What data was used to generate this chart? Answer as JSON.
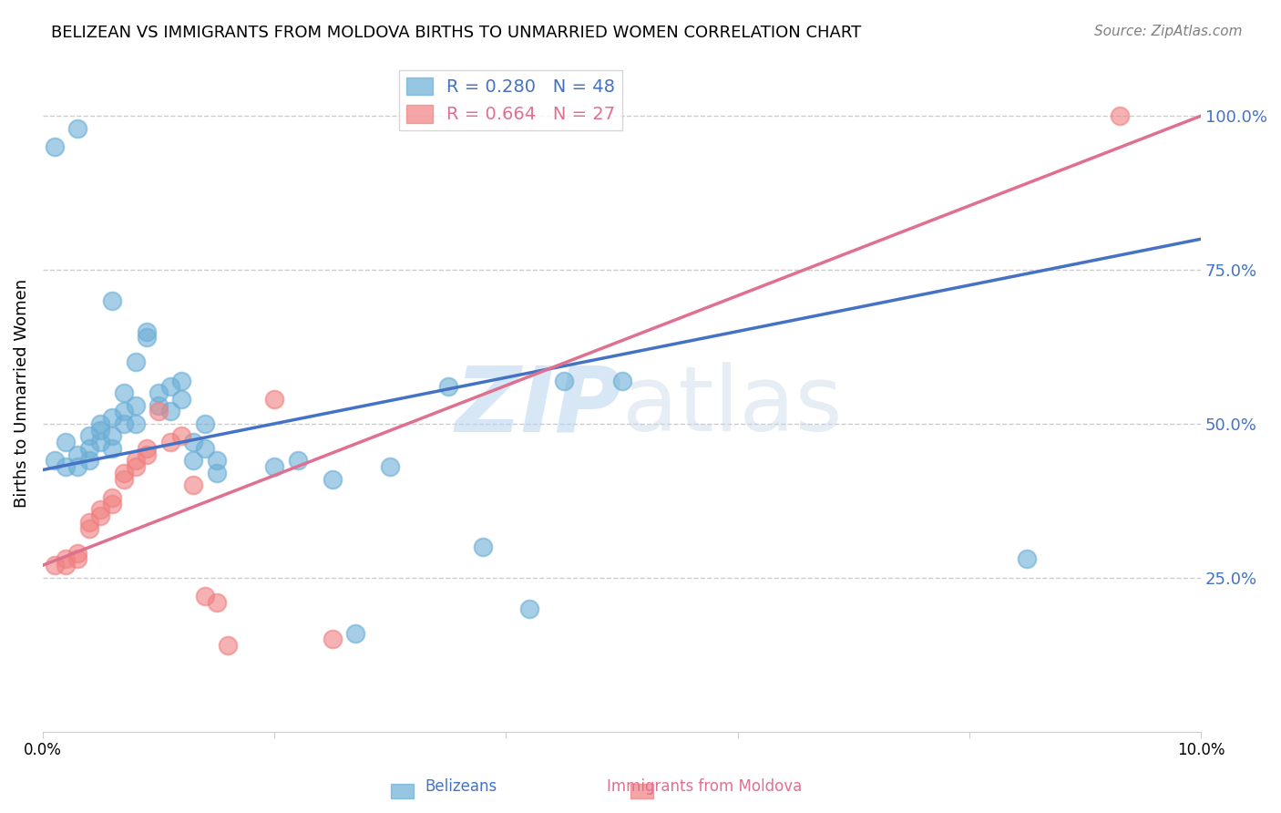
{
  "title": "BELIZEAN VS IMMIGRANTS FROM MOLDOVA BIRTHS TO UNMARRIED WOMEN CORRELATION CHART",
  "source": "Source: ZipAtlas.com",
  "ylabel": "Births to Unmarried Women",
  "yticks": [
    "25.0%",
    "50.0%",
    "75.0%",
    "100.0%"
  ],
  "ytick_vals": [
    0.25,
    0.5,
    0.75,
    1.0
  ],
  "xlim": [
    0.0,
    0.1
  ],
  "ylim": [
    0.0,
    1.1
  ],
  "blue_color": "#6baed6",
  "pink_color": "#f08080",
  "blue_line_color": "#4472c4",
  "pink_line_color": "#e07090",
  "legend_blue_R": "R = 0.280",
  "legend_blue_N": "N = 48",
  "legend_pink_R": "R = 0.664",
  "legend_pink_N": "N = 27",
  "watermark_zip": "ZIP",
  "watermark_atlas": "atlas",
  "blue_scatter_x": [
    0.001,
    0.002,
    0.002,
    0.003,
    0.003,
    0.004,
    0.004,
    0.004,
    0.005,
    0.005,
    0.005,
    0.006,
    0.006,
    0.006,
    0.007,
    0.007,
    0.007,
    0.008,
    0.008,
    0.008,
    0.009,
    0.009,
    0.01,
    0.01,
    0.011,
    0.011,
    0.012,
    0.012,
    0.013,
    0.013,
    0.014,
    0.014,
    0.015,
    0.015,
    0.02,
    0.022,
    0.025,
    0.027,
    0.03,
    0.035,
    0.038,
    0.042,
    0.045,
    0.05,
    0.085,
    0.001,
    0.003,
    0.006
  ],
  "blue_scatter_y": [
    0.44,
    0.43,
    0.47,
    0.43,
    0.45,
    0.44,
    0.48,
    0.46,
    0.49,
    0.47,
    0.5,
    0.51,
    0.48,
    0.46,
    0.52,
    0.5,
    0.55,
    0.5,
    0.53,
    0.6,
    0.65,
    0.64,
    0.53,
    0.55,
    0.52,
    0.56,
    0.54,
    0.57,
    0.47,
    0.44,
    0.5,
    0.46,
    0.42,
    0.44,
    0.43,
    0.44,
    0.41,
    0.16,
    0.43,
    0.56,
    0.3,
    0.2,
    0.57,
    0.57,
    0.28,
    0.95,
    0.98,
    0.7
  ],
  "pink_scatter_x": [
    0.001,
    0.002,
    0.002,
    0.003,
    0.003,
    0.004,
    0.004,
    0.005,
    0.005,
    0.006,
    0.006,
    0.007,
    0.007,
    0.008,
    0.008,
    0.009,
    0.009,
    0.01,
    0.011,
    0.012,
    0.013,
    0.014,
    0.015,
    0.016,
    0.02,
    0.025,
    0.093
  ],
  "pink_scatter_y": [
    0.27,
    0.27,
    0.28,
    0.28,
    0.29,
    0.33,
    0.34,
    0.35,
    0.36,
    0.37,
    0.38,
    0.41,
    0.42,
    0.43,
    0.44,
    0.45,
    0.46,
    0.52,
    0.47,
    0.48,
    0.4,
    0.22,
    0.21,
    0.14,
    0.54,
    0.15,
    1.0
  ],
  "blue_line_x": [
    0.0,
    0.1
  ],
  "blue_line_y": [
    0.425,
    0.8
  ],
  "pink_line_x": [
    0.0,
    0.1
  ],
  "pink_line_y": [
    0.27,
    1.0
  ]
}
